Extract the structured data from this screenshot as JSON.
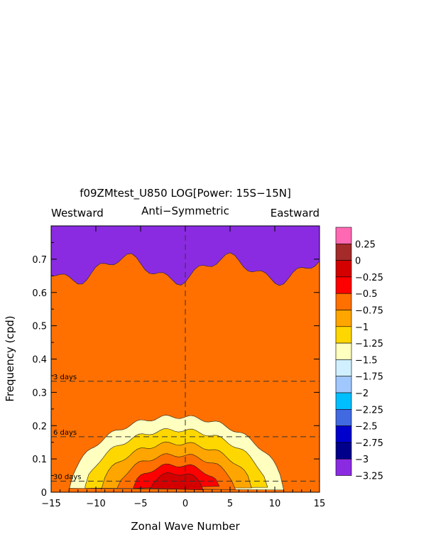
{
  "chart_data": {
    "type": "heatmap",
    "title": "f09ZMtest_U850 LOG[Power: 15S−15N]",
    "subtitle": "Anti−Symmetric",
    "left_label": "Westward",
    "right_label": "Eastward",
    "xlabel": "Zonal Wave Number",
    "ylabel": "Frequency (cpd)",
    "xlim": [
      -15,
      15
    ],
    "ylim": [
      0,
      0.8
    ],
    "x_ticks": [
      -15,
      -10,
      -5,
      0,
      5,
      10,
      15
    ],
    "x_tick_labels": [
      "−15",
      "−10",
      "−5",
      "0",
      "5",
      "10",
      "15"
    ],
    "y_ticks": [
      0,
      0.1,
      0.2,
      0.3,
      0.4,
      0.5,
      0.6,
      0.7
    ],
    "y_tick_labels": [
      "0",
      "0.1",
      "0.2",
      "0.3",
      "0.4",
      "0.5",
      "0.6",
      "0.7"
    ],
    "reference_lines": [
      {
        "label": "3 days",
        "frequency": 0.3333
      },
      {
        "label": "6 days",
        "frequency": 0.1667
      },
      {
        "label": "30 days",
        "frequency": 0.0333
      }
    ],
    "colorbar": {
      "labels": [
        "0.25",
        "0",
        "−0.25",
        "−0.5",
        "−0.75",
        "−1",
        "−1.25",
        "−1.5",
        "−1.75",
        "−2",
        "−2.25",
        "−2.5",
        "−2.75",
        "−3",
        "−3.25"
      ],
      "colors": [
        "#ff69b4",
        "#a52a2a",
        "#d40000",
        "#ff0000",
        "#ff7000",
        "#ffa500",
        "#ffd700",
        "#ffffc0",
        "#d0f0ff",
        "#a0c8ff",
        "#00bfff",
        "#4169e1",
        "#0000cd",
        "#00008b",
        "#8a2be2"
      ]
    },
    "contour_levels": [
      -3.25,
      -3,
      -2.75,
      -2.5,
      -2.25,
      -2,
      -1.75,
      -1.5,
      -1.25,
      -1,
      -0.75,
      -0.5,
      -0.25,
      0,
      0.25
    ]
  }
}
